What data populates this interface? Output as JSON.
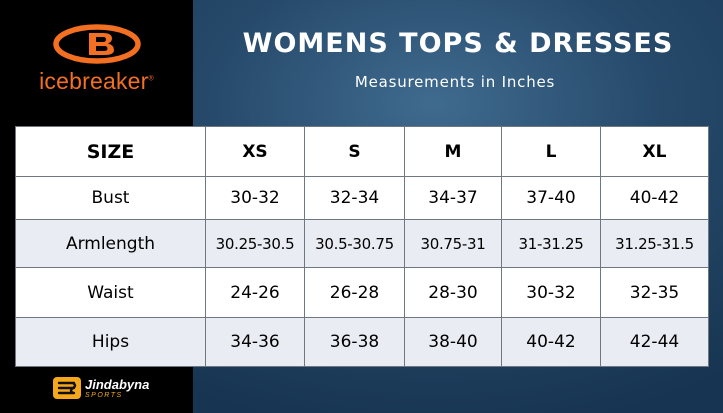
{
  "brand": {
    "name": "icebreaker",
    "mark": "®",
    "color": "#f36f21"
  },
  "header": {
    "title": "WOMENS TOPS & DRESSES",
    "subtitle": "Measurements in Inches"
  },
  "table": {
    "columns": [
      "SIZE",
      "XS",
      "S",
      "M",
      "L",
      "XL"
    ],
    "rows": [
      {
        "label": "Bust",
        "values": [
          "30-32",
          "32-34",
          "34-37",
          "37-40",
          "40-42"
        ]
      },
      {
        "label": "Armlength",
        "values": [
          "30.25-30.5",
          "30.5-30.75",
          "30.75-31",
          "31-31.25",
          "31.25-31.5"
        ]
      },
      {
        "label": "Waist",
        "values": [
          "24-26",
          "26-28",
          "28-30",
          "30-32",
          "32-35"
        ]
      },
      {
        "label": "Hips",
        "values": [
          "34-36",
          "36-38",
          "38-40",
          "40-42",
          "42-44"
        ]
      }
    ]
  },
  "footer_logo": {
    "name": "Jindabyna",
    "sub": "SPORTS",
    "accent": "#f5a81c"
  }
}
